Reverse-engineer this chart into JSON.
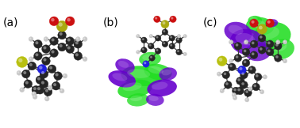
{
  "panels": [
    "(a)",
    "(b)",
    "(c)"
  ],
  "panel_fontsize": 10,
  "background_color": "#ffffff",
  "fig_width": 3.78,
  "fig_height": 1.62,
  "dpi": 100,
  "colors": {
    "carbon": "#252525",
    "hydrogen": "#c8c8c8",
    "nitrogen": "#2020dd",
    "oxygen": "#cc1010",
    "sulfone_S": "#aaaa10",
    "thiol_S": "#b8c010",
    "purple_orbital": "#6600cc",
    "green_orbital": "#22dd22",
    "bond": "#404040"
  }
}
